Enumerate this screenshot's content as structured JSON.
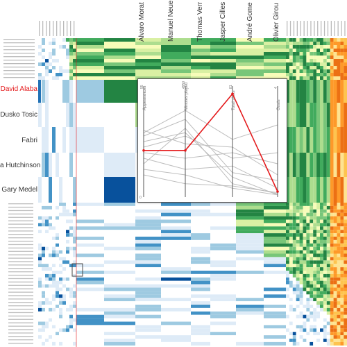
{
  "chart_data": [
    {
      "type": "heatmap",
      "title": "",
      "highlighted_row": "David Alaba",
      "highlight_color": "#e41a1c",
      "row_labels_large": [
        "David Alaba",
        "Dusko Tosic",
        "Fabri",
        "a Hutchinson",
        "Gary Medel"
      ],
      "column_labels_large": [
        "Álvaro Morat",
        "Manuel Neue",
        "Thomas Verr",
        "Jasper Cilles",
        "André Gome",
        "Olivier Girou"
      ],
      "colors": {
        "green_scale": [
          "#f7fcb9",
          "#d9f0a3",
          "#addd8e",
          "#78c679",
          "#41ab5d",
          "#238443"
        ],
        "blue_scale": [
          "#ffffff",
          "#deebf7",
          "#9ecae1",
          "#4292c6",
          "#08519c"
        ],
        "orange_scale": [
          "#fee391",
          "#fec44f",
          "#fe9929",
          "#ec7014"
        ]
      }
    },
    {
      "type": "line",
      "subtype": "parallel-coordinates",
      "axes": [
        {
          "label": "Appearances",
          "top_tick": "55",
          "bottom_tick": "0"
        },
        {
          "label": "Minutes played",
          "top_tick": "4950",
          "bottom_tick": ""
        },
        {
          "label": "Total shots",
          "top_tick": "81",
          "bottom_tick": ""
        },
        {
          "label": "Goals",
          "top_tick": "4",
          "bottom_tick": ""
        }
      ],
      "series": [
        {
          "values": [
            0.42,
            0.42,
            0.93,
            0.05
          ],
          "highlight": true
        },
        {
          "values": [
            0.45,
            0.55,
            0.35,
            0.4
          ]
        },
        {
          "values": [
            0.55,
            0.7,
            0.22,
            0.15
          ]
        },
        {
          "values": [
            0.3,
            0.62,
            0.12,
            0.03
          ]
        },
        {
          "values": [
            0.6,
            0.48,
            0.45,
            0.2
          ]
        },
        {
          "values": [
            0.5,
            0.58,
            0.18,
            0.02
          ]
        },
        {
          "values": [
            0.35,
            0.25,
            0.28,
            0.08
          ]
        },
        {
          "values": [
            0.2,
            0.12,
            0.1,
            0.04
          ]
        },
        {
          "values": [
            0.58,
            0.78,
            0.52,
            0.65
          ]
        },
        {
          "values": [
            0.4,
            0.35,
            0.4,
            0.3
          ]
        },
        {
          "values": [
            0.25,
            0.2,
            0.08,
            0.02
          ]
        }
      ]
    }
  ]
}
